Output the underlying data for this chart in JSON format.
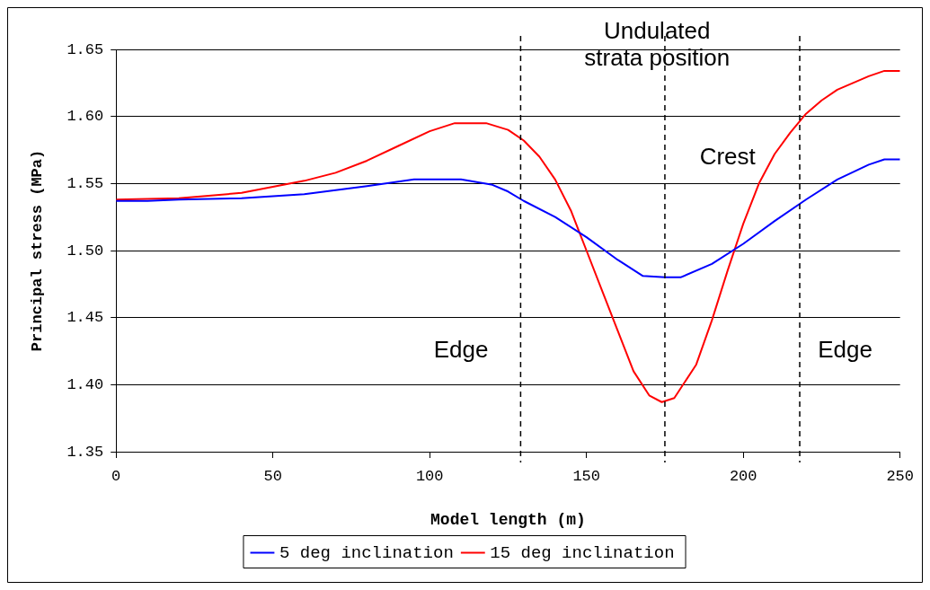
{
  "chart_data": {
    "type": "line",
    "xlabel": "Model length (m)",
    "ylabel": "Principal stress (MPa)",
    "xlim": [
      0,
      250
    ],
    "xticks": [
      0,
      50,
      100,
      150,
      200,
      250
    ],
    "ylim": [
      1.35,
      1.65
    ],
    "yticks": [
      1.35,
      {
        "value": 1.4,
        "label": "1.40"
      },
      1.45,
      {
        "value": 1.5,
        "label": "1.50"
      },
      1.55,
      {
        "value": 1.6,
        "label": "1.60"
      },
      1.65
    ],
    "grid": "y",
    "legend": "bottom",
    "marker": "none",
    "series": [
      {
        "name": "5 deg inclination",
        "color": "#0000ff",
        "x": [
          0,
          10,
          20,
          40,
          60,
          80,
          95,
          110,
          120,
          125,
          130,
          140,
          150,
          160,
          168,
          175,
          180,
          190,
          200,
          210,
          220,
          230,
          240,
          245,
          250
        ],
        "values": [
          1.537,
          1.537,
          1.538,
          1.539,
          1.542,
          1.548,
          1.553,
          1.553,
          1.549,
          1.544,
          1.537,
          1.525,
          1.51,
          1.493,
          1.481,
          1.48,
          1.48,
          1.49,
          1.505,
          1.522,
          1.538,
          1.553,
          1.564,
          1.568,
          1.568
        ]
      },
      {
        "name": "15 deg inclination",
        "color": "#ff0000",
        "x": [
          0,
          20,
          40,
          60,
          70,
          80,
          90,
          100,
          108,
          118,
          125,
          130,
          135,
          140,
          145,
          150,
          155,
          160,
          165,
          170,
          174,
          178,
          185,
          190,
          195,
          200,
          205,
          210,
          215,
          220,
          225,
          230,
          240,
          245,
          250
        ],
        "values": [
          1.538,
          1.539,
          1.543,
          1.552,
          1.558,
          1.567,
          1.578,
          1.589,
          1.595,
          1.595,
          1.59,
          1.582,
          1.57,
          1.553,
          1.53,
          1.5,
          1.47,
          1.44,
          1.41,
          1.392,
          1.387,
          1.39,
          1.415,
          1.448,
          1.485,
          1.52,
          1.55,
          1.572,
          1.588,
          1.602,
          1.612,
          1.62,
          1.63,
          1.634,
          1.634
        ]
      }
    ],
    "ref_lines": [
      {
        "axis": "x",
        "value": 129,
        "color": "#000000",
        "line_style": "dashed"
      },
      {
        "axis": "x",
        "value": 175,
        "color": "#000000",
        "line_style": "dashed"
      },
      {
        "axis": "x",
        "value": 218,
        "color": "#000000",
        "line_style": "dashed"
      }
    ],
    "annotations": [
      "Undulated strata position",
      "Crest",
      "Edge",
      "Edge"
    ]
  }
}
